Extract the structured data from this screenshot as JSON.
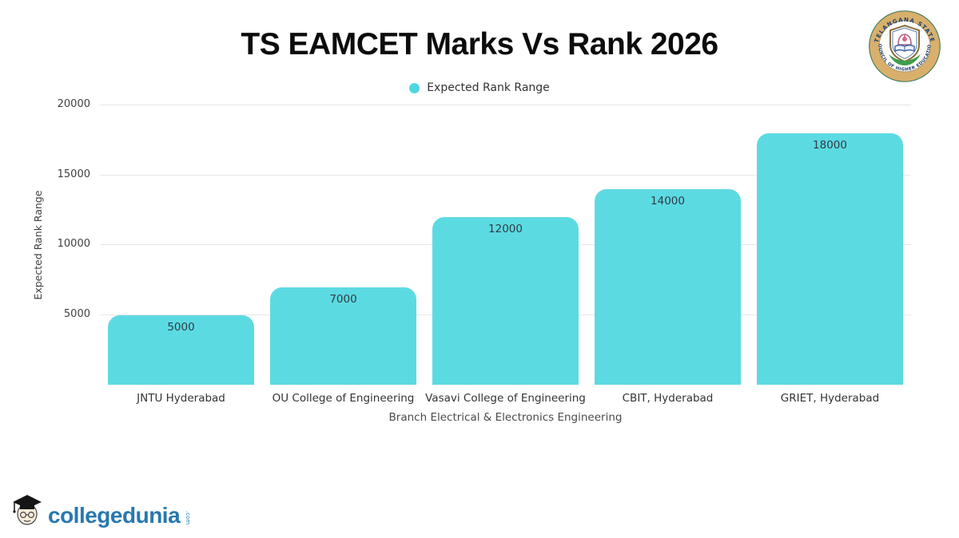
{
  "header": {
    "title": "TS EAMCET Marks Vs Rank 2026"
  },
  "seal": {
    "ring_text_top": "TELANGANA STATE",
    "ring_text_bottom": "COUNCIL OF HIGHER EDUCATION",
    "ring_color": "#d8b06c",
    "text_color": "#1c3f6e"
  },
  "legend": {
    "label": "Expected Rank Range",
    "dot_color": "#4fd6df"
  },
  "chart_data": {
    "type": "bar",
    "title": "TS EAMCET Marks Vs Rank 2026",
    "series_name": "Expected Rank Range",
    "categories": [
      "JNTU Hyderabad",
      "OU College of Engineering",
      "Vasavi College of Engineering",
      "CBIT, Hyderabad",
      "GRIET, Hyderabad"
    ],
    "values": [
      5000,
      7000,
      12000,
      14000,
      18000
    ],
    "value_labels": [
      "5000",
      "7000",
      "12000",
      "14000",
      "18000"
    ],
    "xlabel": "Branch Electrical & Electronics Engineering",
    "ylabel": "Expected Rank Range",
    "ylim": [
      0,
      20000
    ],
    "yticks": [
      5000,
      10000,
      15000,
      20000
    ],
    "grid": "horizontal",
    "legend_position": "top-center",
    "bar_color": "#5cdae2"
  },
  "footer": {
    "brand": "collegedunia",
    "brand_suffix": ".com"
  }
}
